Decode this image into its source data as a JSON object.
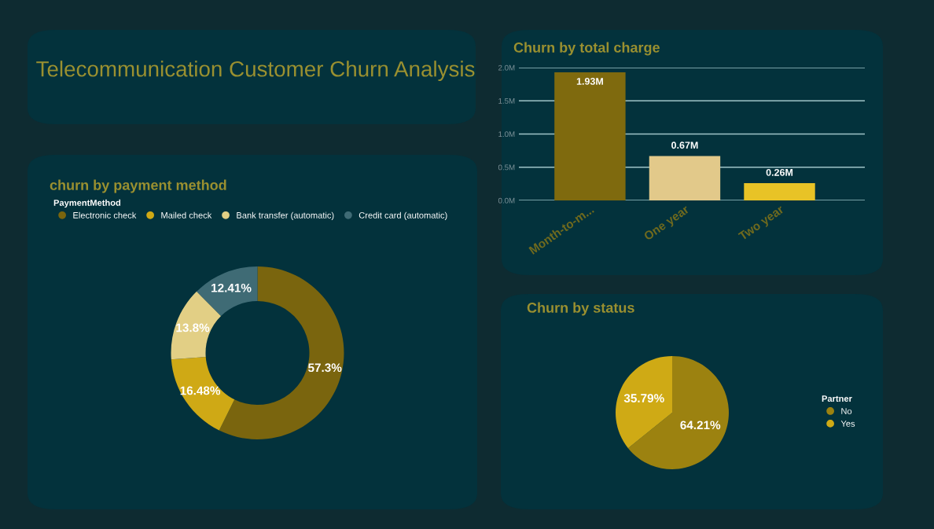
{
  "chart_data": [
    {
      "type": "other",
      "title": "Telecommunication Customer Churn Analysis"
    },
    {
      "type": "bar",
      "title": "Churn by total charge",
      "categories": [
        "Month-to-m...",
        "One year",
        "Two year"
      ],
      "values": [
        1.93,
        0.67,
        0.26
      ],
      "colors": [
        "#7f6a0e",
        "#e2c98a",
        "#e8c326"
      ],
      "value_labels": [
        "1.93M",
        "0.67M",
        "0.26M"
      ],
      "ylim": [
        0,
        2.0
      ],
      "yticks": [
        {
          "value": 0,
          "label": "0.0M"
        },
        {
          "value": 0.5,
          "label": "0.5M"
        },
        {
          "value": 1.0,
          "label": "1.0M"
        },
        {
          "value": 1.5,
          "label": "1.5M"
        },
        {
          "value": 2.0,
          "label": "2.0M"
        }
      ],
      "grid": "y"
    },
    {
      "type": "donut",
      "title": "churn by payment method",
      "legend_title": "PaymentMethod",
      "legend": "top left",
      "categories": [
        "Electronic check",
        "Mailed check",
        "Bank transfer (automatic)",
        "Credit card (automatic)"
      ],
      "values": [
        57.3,
        16.48,
        13.8,
        12.41
      ],
      "colors": [
        "#7a650e",
        "#cfa915",
        "#e2cf85",
        "#3f6b75"
      ],
      "value_labels": [
        "57.3%",
        "16.48%",
        "13.8%",
        "12.41%"
      ]
    },
    {
      "type": "pie",
      "title": "Churn by status",
      "legend_title": "Partner",
      "legend": "right",
      "categories": [
        "No",
        "Yes"
      ],
      "values": [
        64.21,
        35.79
      ],
      "colors": [
        "#9c8210",
        "#cfaa15"
      ],
      "value_labels": [
        "64.21%",
        "35.79%"
      ]
    }
  ]
}
